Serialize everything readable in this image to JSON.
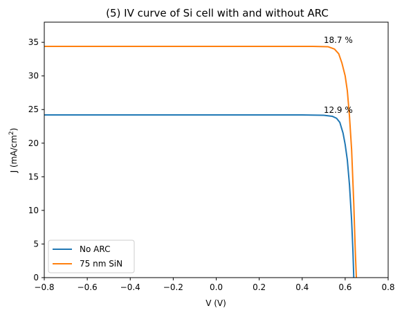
{
  "chart_data": {
    "type": "line",
    "title": "(5) IV curve of Si cell with and without ARC",
    "xlabel": "V (V)",
    "ylabel_main": "J (mA/cm",
    "ylabel_sup": "2",
    "ylabel_close": ")",
    "xlim": [
      -0.8,
      0.8
    ],
    "ylim": [
      0,
      38
    ],
    "xticks": [
      -0.8,
      -0.6,
      -0.4,
      -0.2,
      0.0,
      0.2,
      0.4,
      0.6,
      0.8
    ],
    "xtick_labels": [
      "−0.8",
      "−0.6",
      "−0.4",
      "−0.2",
      "0.0",
      "0.2",
      "0.4",
      "0.6",
      "0.8"
    ],
    "yticks": [
      0,
      5,
      10,
      15,
      20,
      25,
      30,
      35
    ],
    "ytick_labels": [
      "0",
      "5",
      "10",
      "15",
      "20",
      "25",
      "30",
      "35"
    ],
    "grid": false,
    "legend_position": "lower-left",
    "series": [
      {
        "name": "No ARC",
        "color": "#1f77b4",
        "points": [
          [
            -0.8,
            24.2
          ],
          [
            0.0,
            24.2
          ],
          [
            0.4,
            24.2
          ],
          [
            0.5,
            24.15
          ],
          [
            0.54,
            24.0
          ],
          [
            0.56,
            23.7
          ],
          [
            0.575,
            23.1
          ],
          [
            0.59,
            21.5
          ],
          [
            0.6,
            19.8
          ],
          [
            0.61,
            17.5
          ],
          [
            0.62,
            13.8
          ],
          [
            0.63,
            8.5
          ],
          [
            0.636,
            4.0
          ],
          [
            0.64,
            0.0
          ]
        ]
      },
      {
        "name": "75 nm SiN",
        "color": "#ff7f0e",
        "points": [
          [
            -0.8,
            34.4
          ],
          [
            0.0,
            34.4
          ],
          [
            0.45,
            34.4
          ],
          [
            0.52,
            34.35
          ],
          [
            0.55,
            34.0
          ],
          [
            0.57,
            33.3
          ],
          [
            0.585,
            31.9
          ],
          [
            0.6,
            30.0
          ],
          [
            0.61,
            27.8
          ],
          [
            0.62,
            24.0
          ],
          [
            0.63,
            19.0
          ],
          [
            0.64,
            11.0
          ],
          [
            0.647,
            4.0
          ],
          [
            0.652,
            0.0
          ]
        ]
      }
    ],
    "annotations": [
      {
        "text": "18.7 %",
        "x": 0.5,
        "y": 34.9
      },
      {
        "text": "12.9 %",
        "x": 0.5,
        "y": 24.5
      }
    ]
  }
}
